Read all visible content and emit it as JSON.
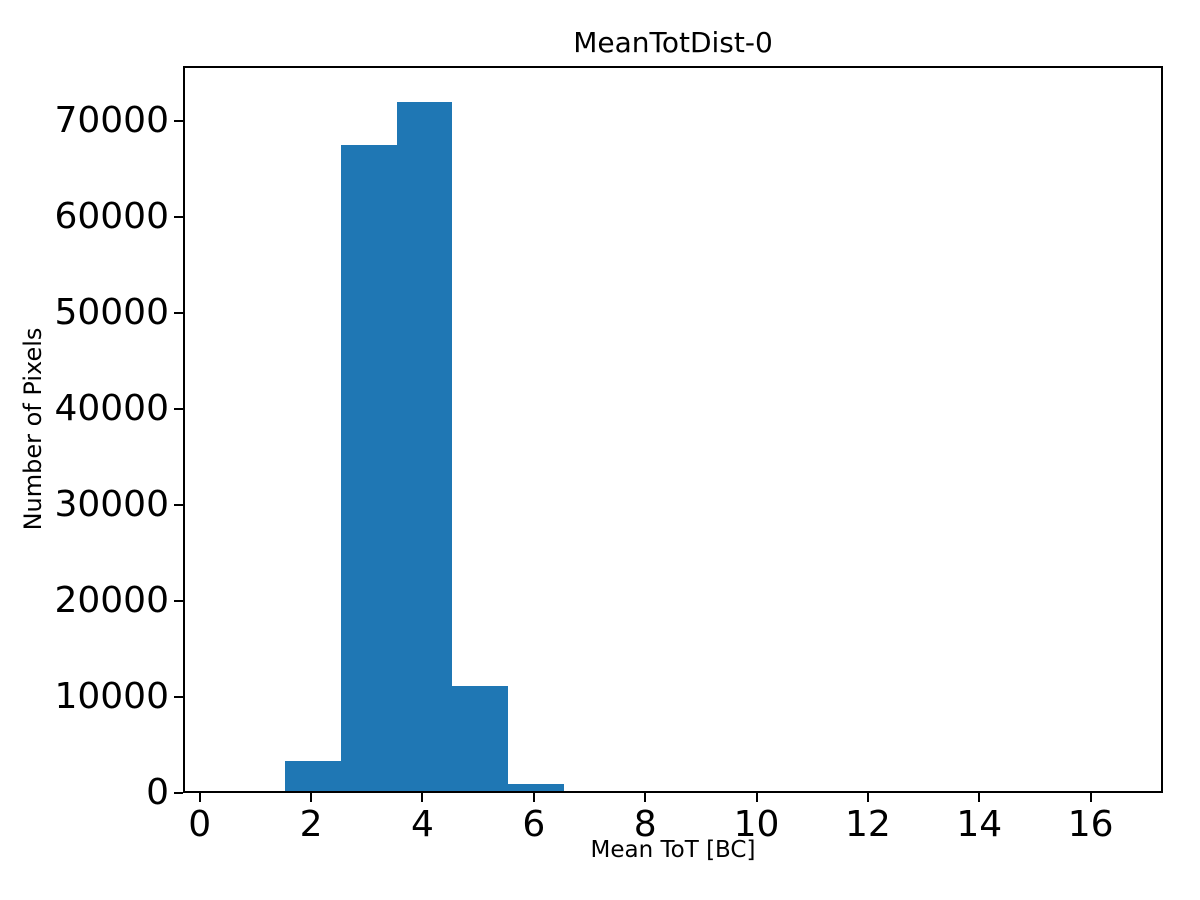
{
  "chart_data": {
    "type": "bar",
    "subtype": "histogram",
    "title": "MeanTotDist-0",
    "xlabel": "Mean ToT [BC]",
    "ylabel": "Number of Pixels",
    "bin_edges": [
      1.5,
      2.5,
      3.5,
      4.5,
      5.5,
      6.5
    ],
    "counts": [
      3100,
      67300,
      71700,
      10900,
      700
    ],
    "xlim": [
      -0.3,
      17.3
    ],
    "ylim": [
      0,
      75700
    ],
    "xticks": [
      0,
      2,
      4,
      6,
      8,
      10,
      12,
      14,
      16
    ],
    "yticks": [
      0,
      10000,
      20000,
      30000,
      40000,
      50000,
      60000,
      70000
    ],
    "bar_color": "#1f77b4",
    "axis_color": "#000000",
    "background_color": "#ffffff",
    "grid": false,
    "legend": null
  }
}
